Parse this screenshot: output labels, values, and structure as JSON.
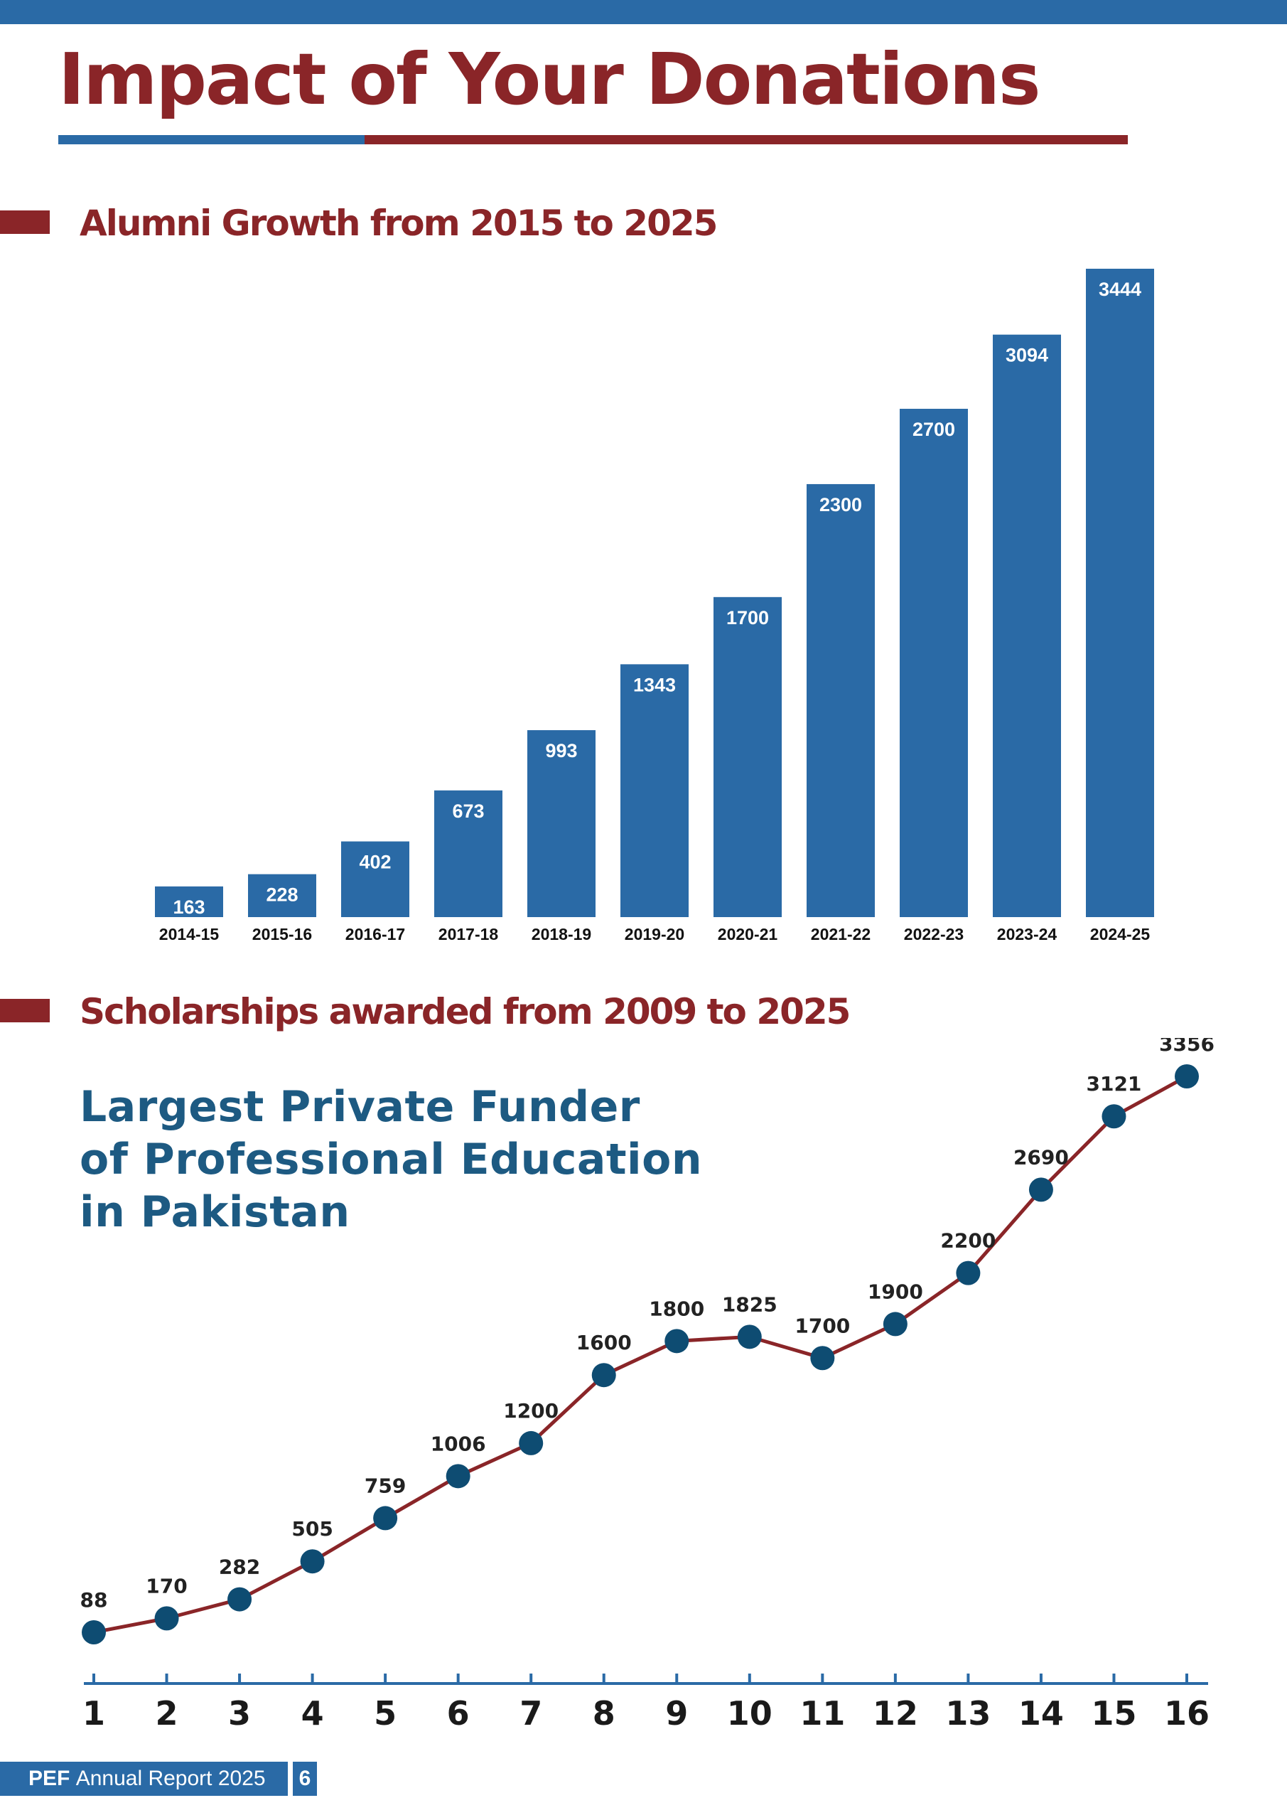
{
  "page": {
    "title": "Impact of Your Donations",
    "colors": {
      "primary_blue": "#2a6aa6",
      "brand_red": "#8a2528",
      "tagline_blue": "#1d5a82",
      "marker_navy": "#0e4c72"
    }
  },
  "alumni_section": {
    "title": "Alumni Growth from 2015 to 2025"
  },
  "scholarship_section": {
    "title": "Scholarships awarded from 2009 to 2025",
    "tagline": [
      "Largest Private Funder",
      "of Professional Education",
      "in Pakistan"
    ]
  },
  "footer": {
    "brand": "PEF",
    "report_name": "Annual Report 2025",
    "page_number": "6"
  },
  "chart_data": [
    {
      "type": "bar",
      "categories": [
        "2014-15",
        "2015-16",
        "2016-17",
        "2017-18",
        "2018-19",
        "2019-20",
        "2020-21",
        "2021-22",
        "2022-23",
        "2023-24",
        "2024-25"
      ],
      "values": [
        163,
        228,
        402,
        673,
        993,
        1343,
        1700,
        2300,
        2700,
        3094,
        3444
      ],
      "data_labels": true,
      "grid": false,
      "color": "#2a6aa6"
    },
    {
      "type": "line",
      "x": [
        1,
        2,
        3,
        4,
        5,
        6,
        7,
        8,
        9,
        10,
        11,
        12,
        13,
        14,
        15,
        16
      ],
      "values": [
        88,
        170,
        282,
        505,
        759,
        1006,
        1200,
        1600,
        1800,
        1825,
        1700,
        1900,
        2200,
        2690,
        3121,
        3356
      ],
      "data_labels": true,
      "grid": false,
      "line_color": "#8a2528",
      "marker_color": "#0e4c72"
    }
  ]
}
